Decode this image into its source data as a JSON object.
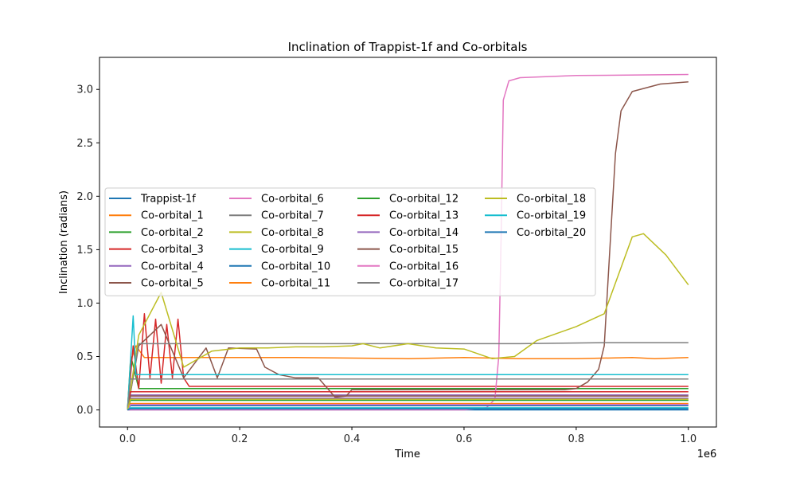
{
  "chart_data": {
    "type": "line",
    "title": "Inclination of Trappist-1f and Co-orbitals",
    "xlabel": "Time",
    "ylabel": "Inclination (radians)",
    "x_offset_label": "1e6",
    "xlim": [
      -50000,
      1050000
    ],
    "ylim": [
      -0.16,
      3.3
    ],
    "x_ticks": [
      0,
      200000,
      400000,
      600000,
      800000,
      1000000
    ],
    "x_tick_labels": [
      "0.0",
      "0.2",
      "0.4",
      "0.6",
      "0.8",
      "1.0"
    ],
    "y_ticks": [
      0,
      0.5,
      1.0,
      1.5,
      2.0,
      2.5,
      3.0
    ],
    "y_tick_labels": [
      "0.0",
      "0.5",
      "1.0",
      "1.5",
      "2.0",
      "2.5",
      "3.0"
    ],
    "legend_position": "center-left",
    "legend_columns": 4,
    "series": [
      {
        "name": "Trappist-1f",
        "color": "#1f77b4",
        "x": [
          0,
          1000000
        ],
        "y": [
          0.0,
          0.0
        ]
      },
      {
        "name": "Co-orbital_1",
        "color": "#ff7f0e",
        "x": [
          0,
          5000,
          15000,
          30000,
          100000,
          300000,
          500000,
          600000,
          700000,
          800000,
          900000,
          940000,
          1000000
        ],
        "y": [
          0.0,
          0.45,
          0.6,
          0.49,
          0.49,
          0.49,
          0.48,
          0.49,
          0.48,
          0.48,
          0.49,
          0.48,
          0.49
        ]
      },
      {
        "name": "Co-orbital_2",
        "color": "#2ca02c",
        "x": [
          0,
          6000,
          20000,
          40000,
          1000000
        ],
        "y": [
          0.0,
          0.5,
          0.2,
          0.2,
          0.2
        ]
      },
      {
        "name": "Co-orbital_3",
        "color": "#d62728",
        "x": [
          0,
          10000,
          20000,
          30000,
          40000,
          50000,
          60000,
          70000,
          80000,
          90000,
          100000,
          110000,
          1000000
        ],
        "y": [
          0.0,
          0.6,
          0.2,
          0.9,
          0.3,
          0.85,
          0.25,
          0.8,
          0.3,
          0.85,
          0.3,
          0.22,
          0.22
        ]
      },
      {
        "name": "Co-orbital_4",
        "color": "#9467bd",
        "x": [
          0,
          5000,
          1000000
        ],
        "y": [
          0.0,
          0.14,
          0.14
        ]
      },
      {
        "name": "Co-orbital_5",
        "color": "#8c564b",
        "x": [
          0,
          20000,
          60000,
          100000,
          140000,
          160000,
          180000,
          230000,
          245000,
          270000,
          300000,
          340000,
          370000,
          390000,
          400000,
          500000,
          700000,
          780000,
          800000,
          820000,
          840000,
          850000,
          860000,
          870000,
          880000,
          900000,
          950000,
          1000000
        ],
        "y": [
          0.0,
          0.6,
          0.8,
          0.3,
          0.58,
          0.3,
          0.58,
          0.57,
          0.4,
          0.33,
          0.3,
          0.3,
          0.12,
          0.13,
          0.19,
          0.19,
          0.19,
          0.19,
          0.2,
          0.26,
          0.38,
          0.6,
          1.5,
          2.4,
          2.8,
          2.98,
          3.05,
          3.07
        ]
      },
      {
        "name": "Co-orbital_6",
        "color": "#e377c2",
        "x": [
          0,
          600000,
          640000,
          655000,
          662000,
          666000,
          670000,
          680000,
          700000,
          800000,
          1000000
        ],
        "y": [
          0.0,
          0.0,
          0.02,
          0.1,
          0.5,
          1.6,
          2.9,
          3.08,
          3.11,
          3.13,
          3.14
        ]
      },
      {
        "name": "Co-orbital_7",
        "color": "#7f7f7f",
        "x": [
          0,
          20000,
          100000,
          300000,
          500000,
          700000,
          850000,
          1000000
        ],
        "y": [
          0.0,
          0.62,
          0.62,
          0.62,
          0.62,
          0.62,
          0.63,
          0.63
        ]
      },
      {
        "name": "Co-orbital_8",
        "color": "#bcbd22",
        "x": [
          0,
          20000,
          60000,
          100000,
          150000,
          200000,
          250000,
          300000,
          350000,
          400000,
          420000,
          450000,
          500000,
          550000,
          600000,
          650000,
          670000,
          690000,
          730000,
          800000,
          850000,
          900000,
          920000,
          960000,
          1000000
        ],
        "y": [
          0.0,
          0.7,
          1.1,
          0.4,
          0.55,
          0.58,
          0.58,
          0.59,
          0.59,
          0.6,
          0.62,
          0.58,
          0.62,
          0.58,
          0.57,
          0.48,
          0.49,
          0.5,
          0.65,
          0.78,
          0.9,
          1.62,
          1.65,
          1.45,
          1.17
        ]
      },
      {
        "name": "Co-orbital_9",
        "color": "#17becf",
        "x": [
          0,
          10000,
          15000,
          25000,
          1000000
        ],
        "y": [
          0.0,
          0.88,
          0.33,
          0.33,
          0.33
        ]
      },
      {
        "name": "Co-orbital_10",
        "color": "#1f77b4",
        "x": [
          0,
          5000,
          1000000
        ],
        "y": [
          0.0,
          0.04,
          0.04
        ]
      },
      {
        "name": "Co-orbital_11",
        "color": "#ff7f0e",
        "x": [
          0,
          5000,
          1000000
        ],
        "y": [
          0.0,
          0.06,
          0.06
        ]
      },
      {
        "name": "Co-orbital_12",
        "color": "#2ca02c",
        "x": [
          0,
          5000,
          1000000
        ],
        "y": [
          0.0,
          0.09,
          0.09
        ]
      },
      {
        "name": "Co-orbital_13",
        "color": "#d62728",
        "x": [
          0,
          5000,
          1000000
        ],
        "y": [
          0.0,
          0.17,
          0.17
        ]
      },
      {
        "name": "Co-orbital_14",
        "color": "#9467bd",
        "x": [
          0,
          5000,
          1000000
        ],
        "y": [
          0.0,
          0.11,
          0.11
        ]
      },
      {
        "name": "Co-orbital_15",
        "color": "#8c564b",
        "x": [
          0,
          5000,
          1000000
        ],
        "y": [
          0.0,
          0.13,
          0.13
        ]
      },
      {
        "name": "Co-orbital_16",
        "color": "#e377c2",
        "x": [
          0,
          5000,
          1000000
        ],
        "y": [
          0.0,
          0.05,
          0.05
        ]
      },
      {
        "name": "Co-orbital_17",
        "color": "#7f7f7f",
        "x": [
          0,
          5000,
          1000000
        ],
        "y": [
          0.0,
          0.29,
          0.29
        ]
      },
      {
        "name": "Co-orbital_18",
        "color": "#bcbd22",
        "x": [
          0,
          5000,
          1000000
        ],
        "y": [
          0.0,
          0.1,
          0.1
        ]
      },
      {
        "name": "Co-orbital_19",
        "color": "#17becf",
        "x": [
          0,
          5000,
          1000000
        ],
        "y": [
          0.0,
          0.02,
          0.02
        ]
      },
      {
        "name": "Co-orbital_20",
        "color": "#1f77b4",
        "x": [
          0,
          5000,
          1000000
        ],
        "y": [
          0.0,
          0.01,
          0.01
        ]
      }
    ]
  }
}
